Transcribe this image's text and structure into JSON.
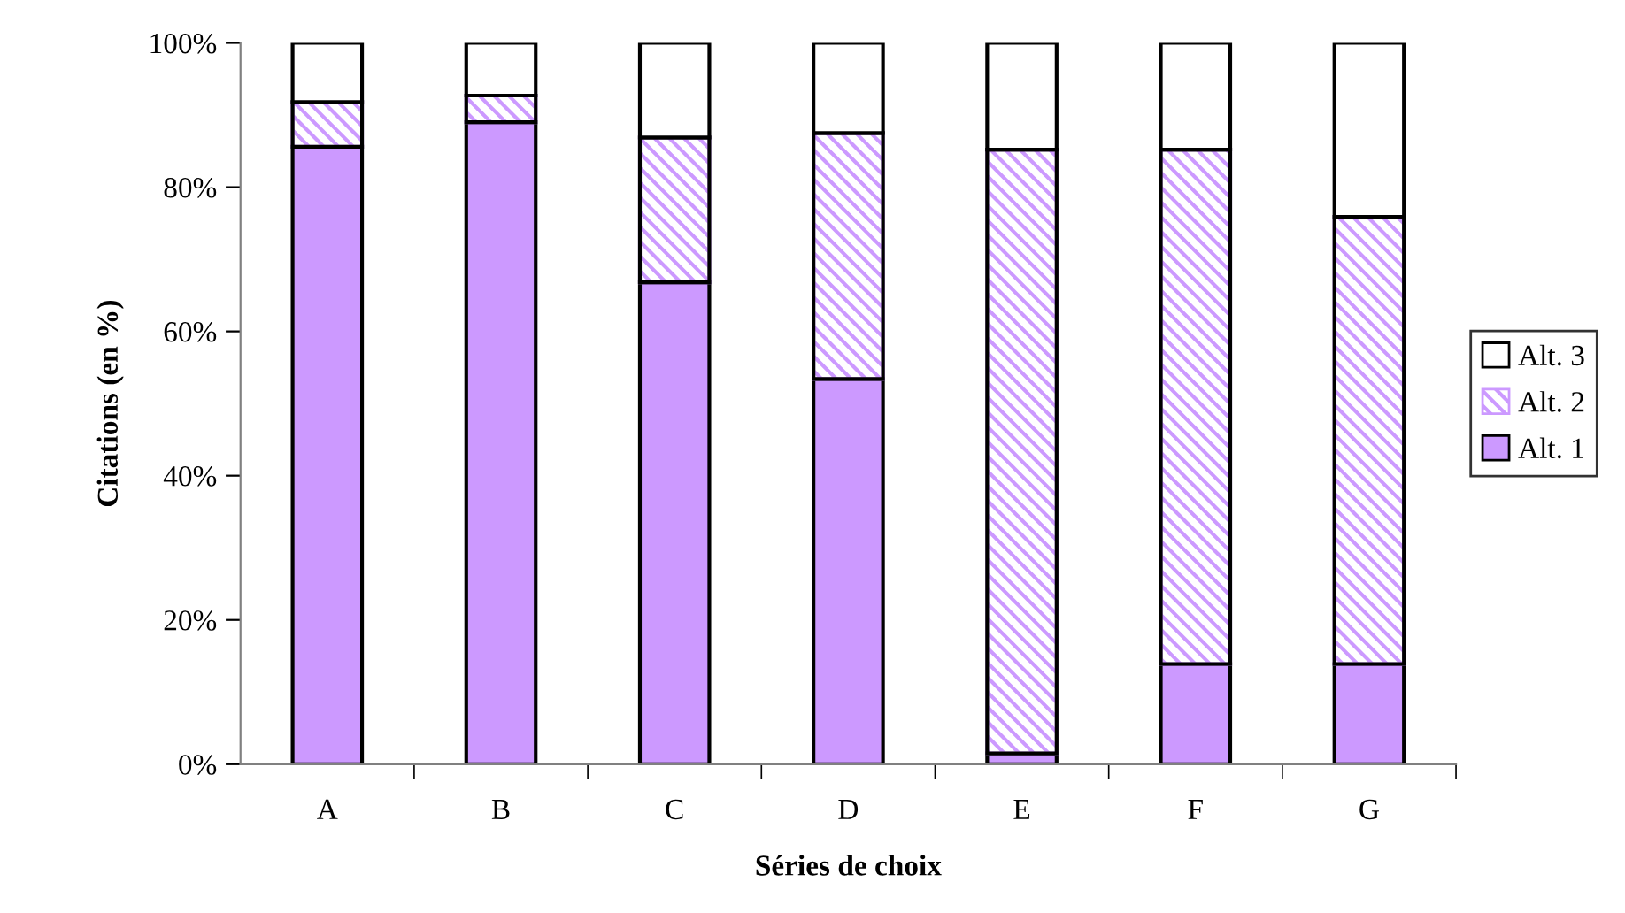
{
  "chart_data": {
    "type": "bar",
    "stacked": true,
    "xlabel": "Séries de choix",
    "ylabel": "Citations (en %)",
    "categories": [
      "A",
      "B",
      "C",
      "D",
      "E",
      "F",
      "G"
    ],
    "series": [
      {
        "name": "Alt. 1",
        "color": "#cc99ff",
        "values": [
          85.6,
          89.0,
          66.8,
          53.4,
          1.5,
          13.9,
          13.9
        ]
      },
      {
        "name": "Alt. 2",
        "color": "#cc99ff",
        "values": [
          6.2,
          3.7,
          20.1,
          34.1,
          83.7,
          71.3,
          62.0
        ]
      },
      {
        "name": "Alt. 3",
        "color": "#ffffff",
        "values": [
          8.2,
          7.3,
          13.1,
          12.5,
          14.8,
          14.8,
          24.1
        ]
      }
    ],
    "ylim": [
      0,
      100
    ],
    "yticks": [
      {
        "value": 0,
        "label": "0%"
      },
      {
        "value": 20,
        "label": "20%"
      },
      {
        "value": 40,
        "label": "40%"
      },
      {
        "value": 60,
        "label": "60%"
      },
      {
        "value": 80,
        "label": "80%"
      },
      {
        "value": 100,
        "label": "100%"
      }
    ],
    "grid": false,
    "legend": "right"
  }
}
